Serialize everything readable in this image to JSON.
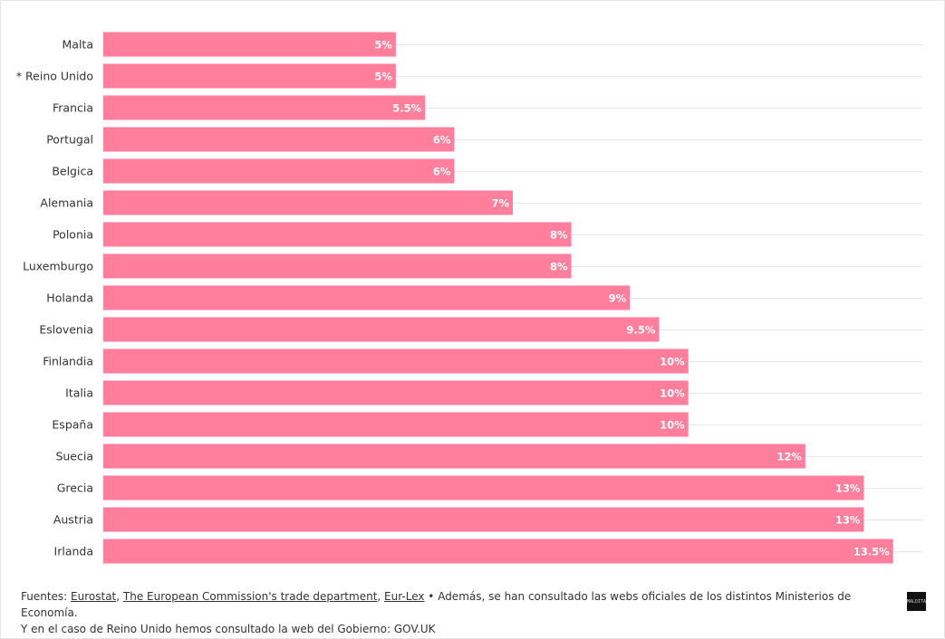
{
  "chart_data": {
    "type": "bar",
    "orientation": "horizontal",
    "categories": [
      "Malta",
      "* Reino Unido",
      "Francia",
      "Portugal",
      "Belgica",
      "Alemania",
      "Polonia",
      "Luxemburgo",
      "Holanda",
      "Eslovenia",
      "Finlandia",
      "Italia",
      "España",
      "Suecia",
      "Grecia",
      "Austria",
      "Irlanda"
    ],
    "values": [
      5,
      5,
      5.5,
      6,
      6,
      7,
      8,
      8,
      9,
      9.5,
      10,
      10,
      10,
      12,
      13,
      13,
      13.5
    ],
    "value_labels": [
      "5%",
      "5%",
      "5.5%",
      "6%",
      "6%",
      "7%",
      "8%",
      "8%",
      "9%",
      "9.5%",
      "10%",
      "10%",
      "10%",
      "12%",
      "13%",
      "13%",
      "13.5%"
    ],
    "xlim": [
      0,
      14
    ],
    "grid": true,
    "bar_color": "#ff7e9b"
  },
  "footer": {
    "prefix": "Fuentes: ",
    "links": [
      "Eurostat",
      "The European Commission's trade department",
      "Eur-Lex"
    ],
    "sep1": ", ",
    "sep2": ", ",
    "text": " • Además, se han consultado las webs oficiales de los distintos Ministerios de Economía.",
    "line2": "Y en el caso de Reino Unido hemos consultado la web del Gobierno: GOV.UK"
  },
  "logo_text": "MALDITA"
}
